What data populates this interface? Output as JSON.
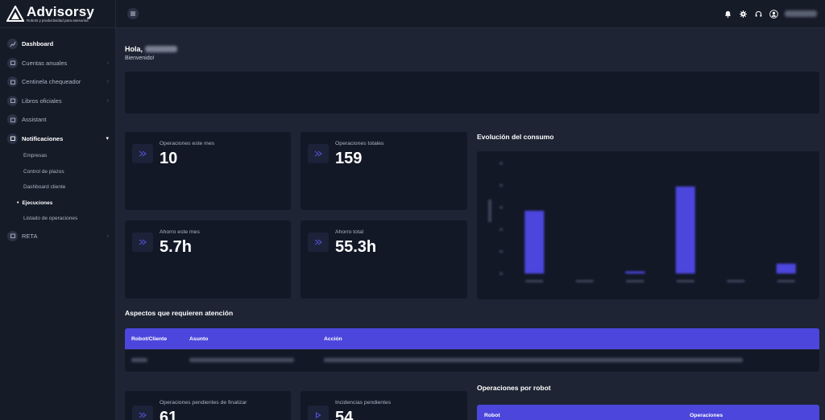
{
  "brand": {
    "name": "Advisorsy",
    "tagline": "Robots y productividad para asesorías"
  },
  "sidebar": {
    "items": [
      {
        "label": "Dashboard",
        "icon": "chart-line-icon",
        "chevron": false
      },
      {
        "label": "Cuentas anuales",
        "icon": "cube-icon",
        "chevron": true
      },
      {
        "label": "Centinela chequeador",
        "icon": "cube-icon",
        "chevron": true
      },
      {
        "label": "Libros oficiales",
        "icon": "cube-icon",
        "chevron": true
      },
      {
        "label": "Assistant",
        "icon": "cube-icon",
        "chevron": false
      },
      {
        "label": "Notificaciones",
        "icon": "cube-icon",
        "chevron": true,
        "active": true
      },
      {
        "label": "RETA",
        "icon": "cube-icon",
        "chevron": true
      }
    ],
    "submenu": [
      "Empresas",
      "Control de plazos",
      "Dashboard cliente",
      "Ejecuciones",
      "Listado de operaciones"
    ],
    "submenu_active": "Ejecuciones"
  },
  "header": {
    "icons": [
      "bell-icon",
      "gear-icon",
      "headset-icon",
      "user-icon"
    ]
  },
  "greeting": {
    "hello": "Hola,",
    "welcome": "Bienvenido!"
  },
  "stats": [
    {
      "label": "Operaciones este mes",
      "value": "10",
      "icon": "fast-forward-icon"
    },
    {
      "label": "Operaciones totales",
      "value": "159",
      "icon": "fast-forward-icon"
    },
    {
      "label": "Ahorro este mes",
      "value": "5.7h",
      "icon": "fast-forward-icon"
    },
    {
      "label": "Ahorro total",
      "value": "55.3h",
      "icon": "fast-forward-icon"
    },
    {
      "label": "Operaciones pendientes de finalizar",
      "value": "61",
      "icon": "fast-forward-icon"
    },
    {
      "label": "Incidencias pendientes",
      "value": "54",
      "icon": "play-icon"
    }
  ],
  "chart_section": {
    "title": "Evolución del consumo"
  },
  "chart_data": {
    "type": "bar",
    "title": "Evolución del consumo",
    "categories": [
      "",
      "",
      "",
      "",
      "",
      ""
    ],
    "values": [
      57,
      0,
      2,
      79,
      0,
      9
    ],
    "ylim": [
      0,
      100
    ],
    "bar_color": "#4c46dd"
  },
  "attention": {
    "title": "Aspectos que requieren atención",
    "columns": [
      "Robot/Cliente",
      "Asunto",
      "Acción"
    ]
  },
  "ops_by_robot": {
    "title": "Operaciones por robot",
    "columns": [
      "Robot",
      "Operaciones"
    ]
  },
  "colors": {
    "accent": "#4c46dd",
    "background": "#1e2433",
    "card": "#131827",
    "sidebar": "#161b28"
  }
}
